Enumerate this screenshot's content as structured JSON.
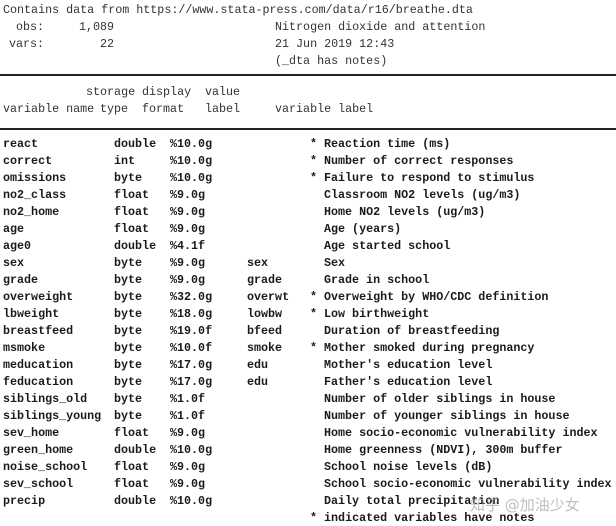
{
  "header": {
    "contains": "Contains data from https://www.stata-press.com/data/r16/breathe.dta",
    "obs_label": "obs:",
    "obs_value": "1,089",
    "vars_label": "vars:",
    "vars_value": "22",
    "dataset_label": "Nitrogen dioxide and attention",
    "timestamp": "21 Jun 2019 12:43",
    "notes": "(_dta has notes)"
  },
  "columns": {
    "storage": "storage",
    "type": "type",
    "display": "display",
    "format": "format",
    "value": "value",
    "label": "label",
    "variable_name": "variable name",
    "variable_label": "variable label"
  },
  "rows": [
    {
      "name": "react",
      "type": "double",
      "format": "%10.0g",
      "value_label": "",
      "note": "*",
      "label": "Reaction time (ms)"
    },
    {
      "name": "correct",
      "type": "int",
      "format": "%10.0g",
      "value_label": "",
      "note": "*",
      "label": "Number of correct responses"
    },
    {
      "name": "omissions",
      "type": "byte",
      "format": "%10.0g",
      "value_label": "",
      "note": "*",
      "label": "Failure to respond to stimulus"
    },
    {
      "name": "no2_class",
      "type": "float",
      "format": "%9.0g",
      "value_label": "",
      "note": "",
      "label": "Classroom NO2 levels (ug/m3)"
    },
    {
      "name": "no2_home",
      "type": "float",
      "format": "%9.0g",
      "value_label": "",
      "note": "",
      "label": "Home NO2 levels (ug/m3)"
    },
    {
      "name": "age",
      "type": "float",
      "format": "%9.0g",
      "value_label": "",
      "note": "",
      "label": "Age (years)"
    },
    {
      "name": "age0",
      "type": "double",
      "format": "%4.1f",
      "value_label": "",
      "note": "",
      "label": "Age started school"
    },
    {
      "name": "sex",
      "type": "byte",
      "format": "%9.0g",
      "value_label": "sex",
      "note": "",
      "label": "Sex"
    },
    {
      "name": "grade",
      "type": "byte",
      "format": "%9.0g",
      "value_label": "grade",
      "note": "",
      "label": "Grade in school"
    },
    {
      "name": "overweight",
      "type": "byte",
      "format": "%32.0g",
      "value_label": "overwt",
      "note": "*",
      "label": "Overweight by WHO/CDC definition"
    },
    {
      "name": "lbweight",
      "type": "byte",
      "format": "%18.0g",
      "value_label": "lowbw",
      "note": "*",
      "label": "Low birthweight"
    },
    {
      "name": "breastfeed",
      "type": "byte",
      "format": "%19.0f",
      "value_label": "bfeed",
      "note": "",
      "label": "Duration of breastfeeding"
    },
    {
      "name": "msmoke",
      "type": "byte",
      "format": "%10.0f",
      "value_label": "smoke",
      "note": "*",
      "label": "Mother smoked during pregnancy"
    },
    {
      "name": "meducation",
      "type": "byte",
      "format": "%17.0g",
      "value_label": "edu",
      "note": "",
      "label": "Mother's education level"
    },
    {
      "name": "feducation",
      "type": "byte",
      "format": "%17.0g",
      "value_label": "edu",
      "note": "",
      "label": "Father's education level"
    },
    {
      "name": "siblings_old",
      "type": "byte",
      "format": "%1.0f",
      "value_label": "",
      "note": "",
      "label": "Number of older siblings in house"
    },
    {
      "name": "siblings_young",
      "type": "byte",
      "format": "%1.0f",
      "value_label": "",
      "note": "",
      "label": "Number of younger siblings in house"
    },
    {
      "name": "sev_home",
      "type": "float",
      "format": "%9.0g",
      "value_label": "",
      "note": "",
      "label": "Home socio-economic vulnerability index"
    },
    {
      "name": "green_home",
      "type": "double",
      "format": "%10.0g",
      "value_label": "",
      "note": "",
      "label": "Home greenness (NDVI), 300m buffer"
    },
    {
      "name": "noise_school",
      "type": "float",
      "format": "%9.0g",
      "value_label": "",
      "note": "",
      "label": "School noise levels (dB)"
    },
    {
      "name": "sev_school",
      "type": "float",
      "format": "%9.0g",
      "value_label": "",
      "note": "",
      "label": "School socio-economic vulnerability index"
    },
    {
      "name": "precip",
      "type": "double",
      "format": "%10.0g",
      "value_label": "",
      "note": "",
      "label": "Daily total precipitation"
    }
  ],
  "footnote": "* indicated variables have notes",
  "watermark": "知乎 @加油少女"
}
